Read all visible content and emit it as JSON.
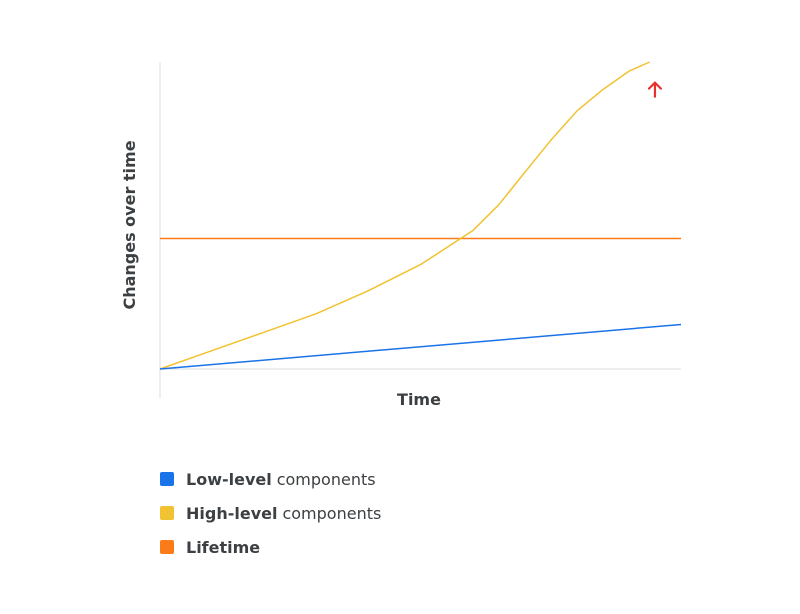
{
  "chart_data": {
    "type": "line",
    "title": "",
    "xlabel": "Time",
    "ylabel": "Changes over time",
    "x": [
      0,
      0.05,
      0.1,
      0.15,
      0.2,
      0.25,
      0.3,
      0.35,
      0.4,
      0.45,
      0.5,
      0.55,
      0.6,
      0.65,
      0.7,
      0.75,
      0.8,
      0.85,
      0.9,
      0.95,
      1.0
    ],
    "xlim": [
      0,
      1
    ],
    "ylim": [
      0,
      1
    ],
    "ticks_shown": false,
    "grid": false,
    "legend_position": "bottom",
    "series": [
      {
        "name_bold": "Low-level",
        "name_rest": "components",
        "color": "#1a73e8",
        "x": [
          0,
          1.0
        ],
        "values": [
          0,
          0.145
        ]
      },
      {
        "name_bold": "High-level",
        "name_rest": "components",
        "color": "#f1c232",
        "x": [
          0,
          0.1,
          0.2,
          0.3,
          0.4,
          0.5,
          0.6,
          0.65,
          0.7,
          0.75,
          0.8,
          0.85,
          0.9,
          0.94
        ],
        "values": [
          0,
          0.06,
          0.12,
          0.18,
          0.255,
          0.34,
          0.45,
          0.535,
          0.64,
          0.745,
          0.84,
          0.91,
          0.97,
          1.0
        ]
      },
      {
        "name_bold": "Lifetime",
        "name_rest": "",
        "color": "#fa7b17",
        "x": [
          0,
          1.0
        ],
        "values": [
          0.425,
          0.425
        ]
      }
    ],
    "annotation": {
      "icon": "up-arrow-icon",
      "color": "#e8312f",
      "x": 0.95,
      "y": 0.91
    },
    "axis_color": "#dadce0"
  }
}
